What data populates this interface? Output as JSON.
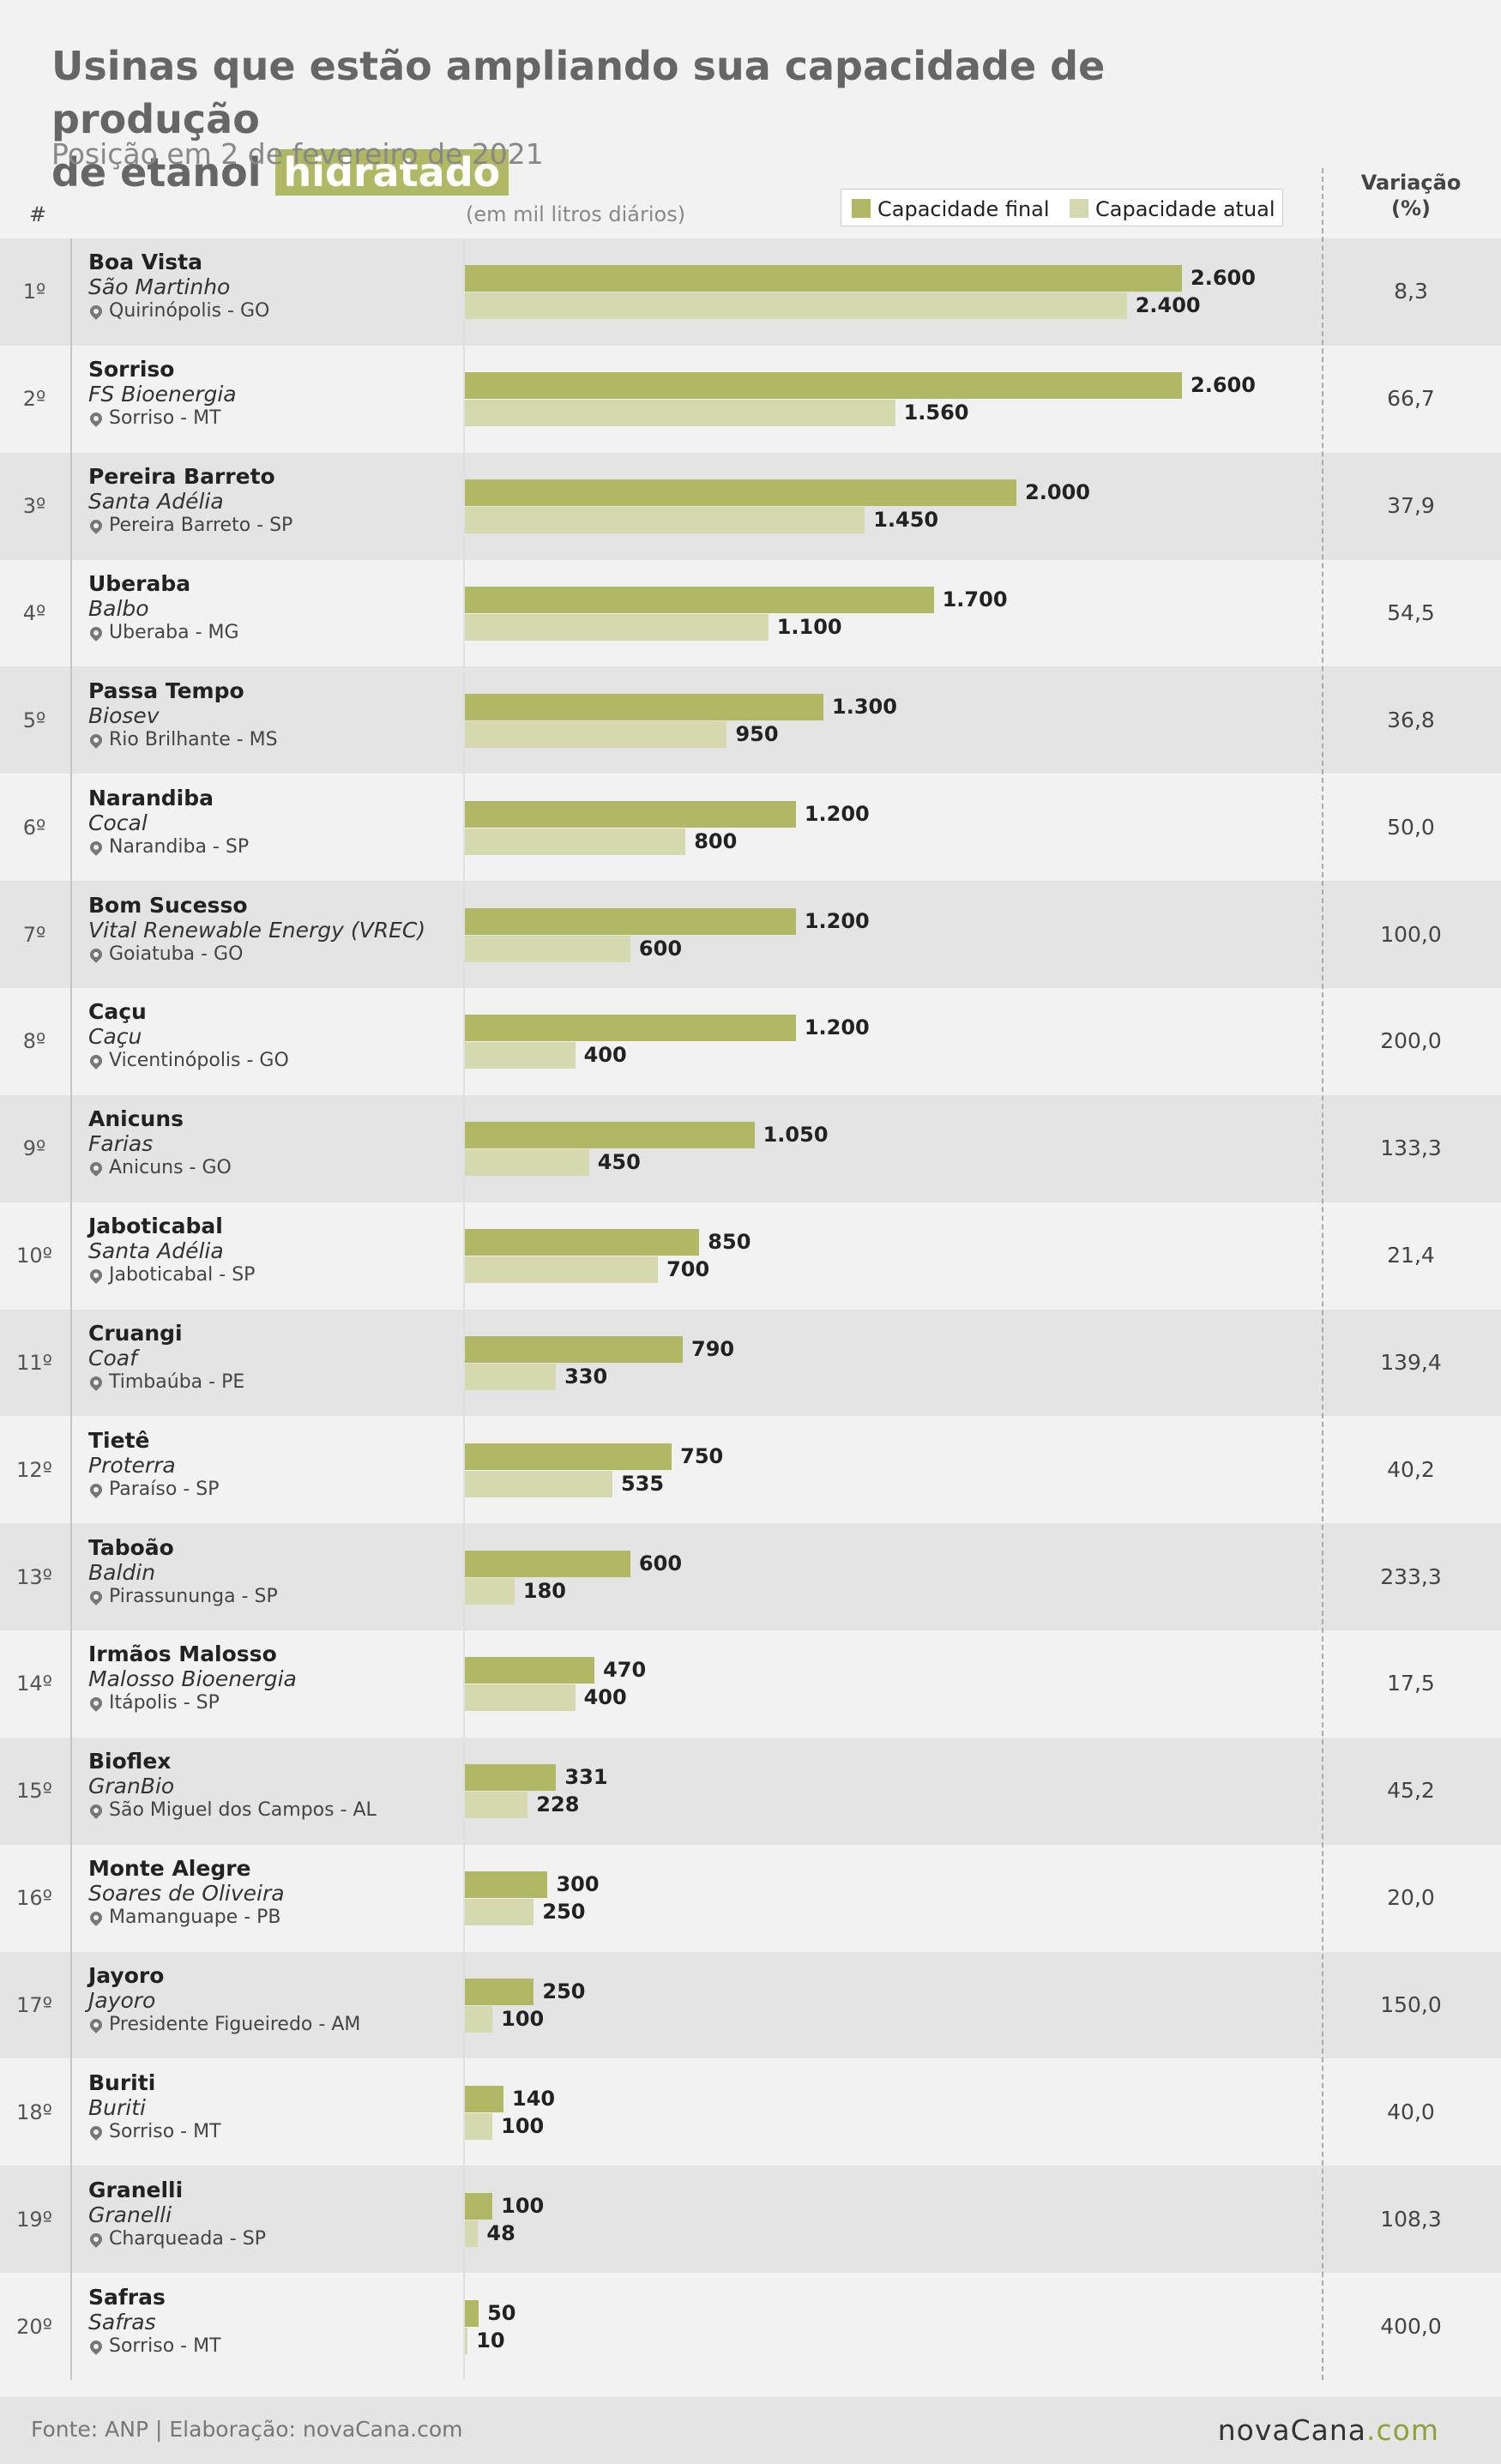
{
  "header": {
    "title_part1": "Usinas que estão ampliando sua capacidade de produção",
    "title_part2": "de etanol",
    "title_highlight": "hidratado",
    "subtitle": "Posição em 2 de fevereiro de 2021",
    "rank_header": "#",
    "unit_label": "(em mil litros diários)",
    "variation_header_line1": "Variação",
    "variation_header_line2": "(%)"
  },
  "legend": {
    "final_label": "Capacidade final",
    "atual_label": "Capacidade atual"
  },
  "colors": {
    "final": "#b0b864",
    "atual": "#d6d9b0",
    "row_alt": "#e4e4e4",
    "background": "#f2f2f2"
  },
  "chart_data": {
    "type": "bar",
    "orientation": "horizontal",
    "xlim": [
      0,
      2600
    ],
    "series": [
      {
        "name": "Capacidade final",
        "values": [
          2600,
          2600,
          2000,
          1700,
          1300,
          1200,
          1200,
          1200,
          1050,
          850,
          790,
          750,
          600,
          470,
          331,
          300,
          250,
          140,
          100,
          50
        ]
      },
      {
        "name": "Capacidade atual",
        "values": [
          2400,
          1560,
          1450,
          1100,
          950,
          800,
          600,
          400,
          450,
          700,
          330,
          535,
          180,
          400,
          228,
          250,
          100,
          100,
          48,
          10
        ]
      }
    ],
    "rows": [
      {
        "rank": "1º",
        "name": "Boa Vista",
        "company": "São Martinho",
        "location": "Quirinópolis - GO",
        "final": 2600,
        "atual": 2400,
        "final_label": "2.600",
        "atual_label": "2.400",
        "variation": "8,3"
      },
      {
        "rank": "2º",
        "name": "Sorriso",
        "company": "FS Bioenergia",
        "location": "Sorriso - MT",
        "final": 2600,
        "atual": 1560,
        "final_label": "2.600",
        "atual_label": "1.560",
        "variation": "66,7"
      },
      {
        "rank": "3º",
        "name": "Pereira Barreto",
        "company": "Santa Adélia",
        "location": "Pereira Barreto - SP",
        "final": 2000,
        "atual": 1450,
        "final_label": "2.000",
        "atual_label": "1.450",
        "variation": "37,9"
      },
      {
        "rank": "4º",
        "name": "Uberaba",
        "company": "Balbo",
        "location": "Uberaba - MG",
        "final": 1700,
        "atual": 1100,
        "final_label": "1.700",
        "atual_label": "1.100",
        "variation": "54,5"
      },
      {
        "rank": "5º",
        "name": "Passa Tempo",
        "company": "Biosev",
        "location": "Rio Brilhante - MS",
        "final": 1300,
        "atual": 950,
        "final_label": "1.300",
        "atual_label": "950",
        "variation": "36,8"
      },
      {
        "rank": "6º",
        "name": "Narandiba",
        "company": "Cocal",
        "location": "Narandiba - SP",
        "final": 1200,
        "atual": 800,
        "final_label": "1.200",
        "atual_label": "800",
        "variation": "50,0"
      },
      {
        "rank": "7º",
        "name": "Bom Sucesso",
        "company": "Vital Renewable Energy (VREC)",
        "location": "Goiatuba - GO",
        "final": 1200,
        "atual": 600,
        "final_label": "1.200",
        "atual_label": "600",
        "variation": "100,0"
      },
      {
        "rank": "8º",
        "name": "Caçu",
        "company": "Caçu",
        "location": "Vicentinópolis - GO",
        "final": 1200,
        "atual": 400,
        "final_label": "1.200",
        "atual_label": "400",
        "variation": "200,0"
      },
      {
        "rank": "9º",
        "name": "Anicuns",
        "company": "Farias",
        "location": "Anicuns - GO",
        "final": 1050,
        "atual": 450,
        "final_label": "1.050",
        "atual_label": "450",
        "variation": "133,3"
      },
      {
        "rank": "10º",
        "name": "Jaboticabal",
        "company": "Santa Adélia",
        "location": "Jaboticabal - SP",
        "final": 850,
        "atual": 700,
        "final_label": "850",
        "atual_label": "700",
        "variation": "21,4"
      },
      {
        "rank": "11º",
        "name": "Cruangi",
        "company": "Coaf",
        "location": "Timbaúba - PE",
        "final": 790,
        "atual": 330,
        "final_label": "790",
        "atual_label": "330",
        "variation": "139,4"
      },
      {
        "rank": "12º",
        "name": "Tietê",
        "company": "Proterra",
        "location": "Paraíso - SP",
        "final": 750,
        "atual": 535,
        "final_label": "750",
        "atual_label": "535",
        "variation": "40,2"
      },
      {
        "rank": "13º",
        "name": "Taboão",
        "company": "Baldin",
        "location": "Pirassununga - SP",
        "final": 600,
        "atual": 180,
        "final_label": "600",
        "atual_label": "180",
        "variation": "233,3"
      },
      {
        "rank": "14º",
        "name": "Irmãos Malosso",
        "company": "Malosso Bioenergia",
        "location": "Itápolis - SP",
        "final": 470,
        "atual": 400,
        "final_label": "470",
        "atual_label": "400",
        "variation": "17,5"
      },
      {
        "rank": "15º",
        "name": "Bioflex",
        "company": "GranBio",
        "location": "São Miguel dos Campos - AL",
        "final": 331,
        "atual": 228,
        "final_label": "331",
        "atual_label": "228",
        "variation": "45,2"
      },
      {
        "rank": "16º",
        "name": "Monte Alegre",
        "company": "Soares de Oliveira",
        "location": "Mamanguape - PB",
        "final": 300,
        "atual": 250,
        "final_label": "300",
        "atual_label": "250",
        "variation": "20,0"
      },
      {
        "rank": "17º",
        "name": "Jayoro",
        "company": "Jayoro",
        "location": "Presidente Figueiredo - AM",
        "final": 250,
        "atual": 100,
        "final_label": "250",
        "atual_label": "100",
        "variation": "150,0"
      },
      {
        "rank": "18º",
        "name": "Buriti",
        "company": "Buriti",
        "location": "Sorriso - MT",
        "final": 140,
        "atual": 100,
        "final_label": "140",
        "atual_label": "100",
        "variation": "40,0"
      },
      {
        "rank": "19º",
        "name": "Granelli",
        "company": "Granelli",
        "location": "Charqueada - SP",
        "final": 100,
        "atual": 48,
        "final_label": "100",
        "atual_label": "48",
        "variation": "108,3"
      },
      {
        "rank": "20º",
        "name": "Safras",
        "company": "Safras",
        "location": "Sorriso - MT",
        "final": 50,
        "atual": 10,
        "final_label": "50",
        "atual_label": "10",
        "variation": "400,0"
      }
    ]
  },
  "footer": {
    "source": "Fonte: ANP | Elaboração: novaCana.com",
    "brand_main": "novaCana",
    "brand_suffix": ".com"
  }
}
